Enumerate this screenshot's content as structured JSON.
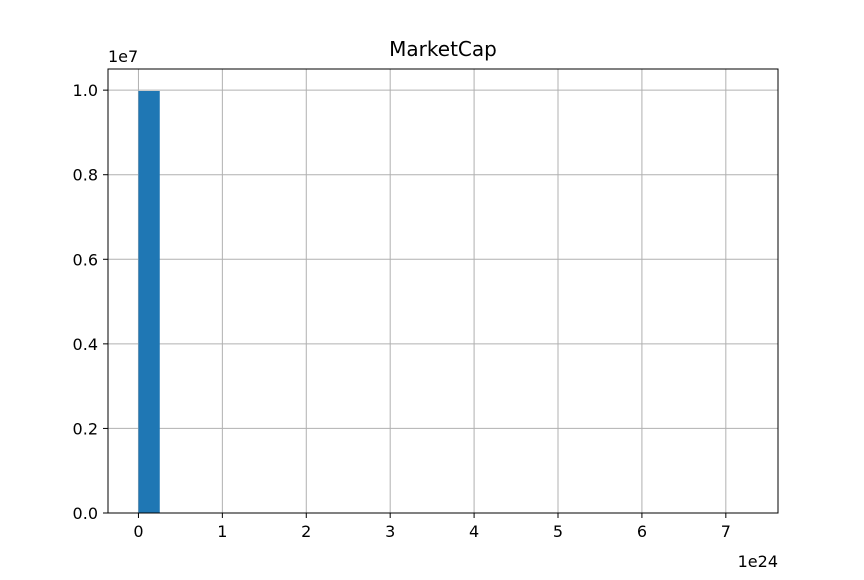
{
  "chart_data": {
    "type": "bar",
    "title": "MarketCap",
    "xlabel": "",
    "ylabel": "",
    "x_offset_label": "1e24",
    "y_offset_label": "1e7",
    "xlim": [
      -0.3629,
      7.6218
    ],
    "ylim": [
      0,
      1.05
    ],
    "x_ticks": [
      0,
      1,
      2,
      3,
      4,
      5,
      6,
      7
    ],
    "x_tick_labels": [
      "0",
      "1",
      "2",
      "3",
      "4",
      "5",
      "6",
      "7"
    ],
    "y_ticks": [
      0,
      0.2,
      0.4,
      0.6,
      0.8,
      1.0
    ],
    "y_tick_labels": [
      "0.0",
      "0.2",
      "0.4",
      "0.6",
      "0.8",
      "1.0"
    ],
    "grid": true,
    "bar_color": "#1f77b4",
    "bins": [
      {
        "x0": 0.0,
        "x1": 0.254,
        "value": 0.998
      },
      {
        "x0": 0.254,
        "x1": 0.5081,
        "value": 0
      },
      {
        "x0": 0.5081,
        "x1": 0.7621,
        "value": 0
      },
      {
        "x0": 0.7621,
        "x1": 1.0162,
        "value": 0
      },
      {
        "x0": 1.0162,
        "x1": 1.2702,
        "value": 0
      },
      {
        "x0": 1.2702,
        "x1": 1.5243,
        "value": 0
      },
      {
        "x0": 1.5243,
        "x1": 1.7783,
        "value": 0
      },
      {
        "x0": 1.7783,
        "x1": 2.0324,
        "value": 0
      },
      {
        "x0": 2.0324,
        "x1": 2.2864,
        "value": 0
      },
      {
        "x0": 2.2864,
        "x1": 2.5405,
        "value": 0
      },
      {
        "x0": 2.5405,
        "x1": 2.7945,
        "value": 0
      },
      {
        "x0": 2.7945,
        "x1": 3.0486,
        "value": 0
      },
      {
        "x0": 3.0486,
        "x1": 3.3026,
        "value": 0
      },
      {
        "x0": 3.3026,
        "x1": 3.5567,
        "value": 0
      },
      {
        "x0": 3.5567,
        "x1": 3.8107,
        "value": 0
      },
      {
        "x0": 3.8107,
        "x1": 4.0648,
        "value": 0
      },
      {
        "x0": 4.0648,
        "x1": 4.3188,
        "value": 0
      },
      {
        "x0": 4.3188,
        "x1": 4.5729,
        "value": 0
      },
      {
        "x0": 4.5729,
        "x1": 4.8269,
        "value": 0
      },
      {
        "x0": 4.8269,
        "x1": 5.081,
        "value": 0
      },
      {
        "x0": 5.081,
        "x1": 5.335,
        "value": 0
      },
      {
        "x0": 5.335,
        "x1": 5.5891,
        "value": 0
      },
      {
        "x0": 5.5891,
        "x1": 5.8431,
        "value": 0
      },
      {
        "x0": 5.8431,
        "x1": 6.0972,
        "value": 0
      },
      {
        "x0": 6.0972,
        "x1": 6.3512,
        "value": 0
      },
      {
        "x0": 6.3512,
        "x1": 6.6053,
        "value": 0
      },
      {
        "x0": 6.6053,
        "x1": 6.8593,
        "value": 0
      },
      {
        "x0": 6.8593,
        "x1": 7.1134,
        "value": 0
      },
      {
        "x0": 7.1134,
        "x1": 7.3674,
        "value": 0
      },
      {
        "x0": 7.3674,
        "x1": 7.6215,
        "value": 0
      }
    ]
  }
}
